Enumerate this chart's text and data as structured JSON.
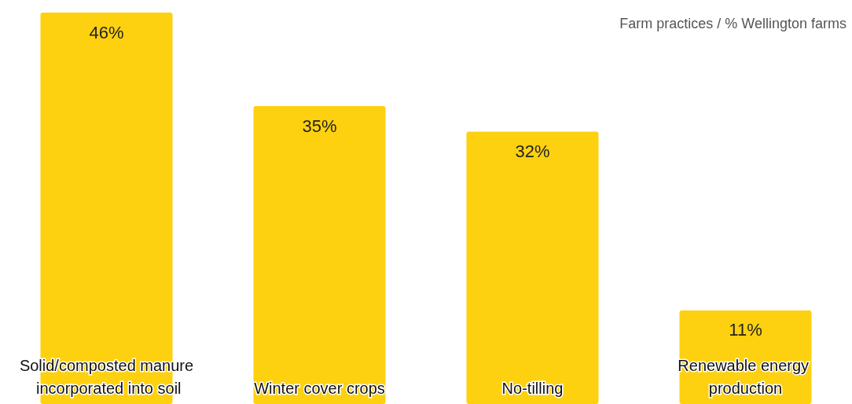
{
  "chart_data": {
    "type": "bar",
    "title": "Farm practices / % Wellington farms",
    "categories": [
      "Solid/composted manure incorporated into soil",
      "Winter cover crops",
      "No-tilling",
      "Renewable energy production"
    ],
    "values": [
      46,
      35,
      32,
      11
    ],
    "value_labels": [
      "46%",
      "35%",
      "32%",
      "11%"
    ],
    "color": "#fdd10f",
    "grid": false
  }
}
